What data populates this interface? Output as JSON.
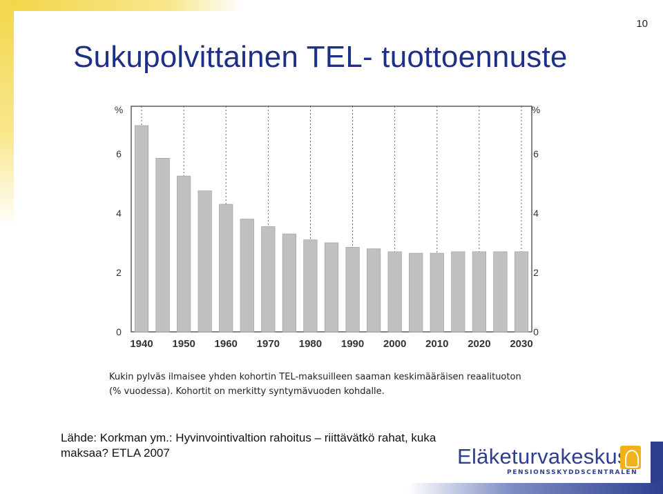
{
  "slide": {
    "number": "10",
    "title": "Sukupolvittainen TEL- tuottoennuste",
    "caption_line1": "Kukin pylväs ilmaisee yhden kohortin TEL-maksuilleen saaman keskimääräisen reaalituoton",
    "caption_line2": "(% vuodessa). Kohortit on merkitty syntymävuoden kohdalle.",
    "source_line1": "Lähde: Korkman ym.: Hyvinvointivaltion rahoitus – riittävätkö rahat, kuka",
    "source_line2": "maksaa? ETLA 2007",
    "logo_name": "Eläketurvakeskus",
    "logo_sub": "PENSIONSSKYDDSCENTRALEN",
    "colors": {
      "title": "#1f2f86",
      "bar": "#c0c0c0",
      "brand": "#2e3f8f",
      "accent": "#f3d64a"
    }
  },
  "chart_data": {
    "type": "bar",
    "ylabel_left": "%",
    "ylabel_right": "%",
    "ylim": [
      0,
      7.6
    ],
    "yticks": [
      0,
      2,
      4,
      6
    ],
    "grid": "vertical dotted",
    "x_labels": [
      "1940",
      "1950",
      "1960",
      "1970",
      "1980",
      "1990",
      "2000",
      "2010",
      "2020",
      "2030"
    ],
    "categories": [
      1940,
      1945,
      1950,
      1955,
      1960,
      1965,
      1970,
      1975,
      1980,
      1985,
      1990,
      1995,
      2000,
      2005,
      2010,
      2015,
      2020,
      2025,
      2030
    ],
    "values": [
      6.95,
      5.85,
      5.25,
      4.75,
      4.3,
      3.8,
      3.55,
      3.3,
      3.1,
      3.0,
      2.85,
      2.8,
      2.7,
      2.65,
      2.65,
      2.7,
      2.7,
      2.7,
      2.7
    ]
  }
}
